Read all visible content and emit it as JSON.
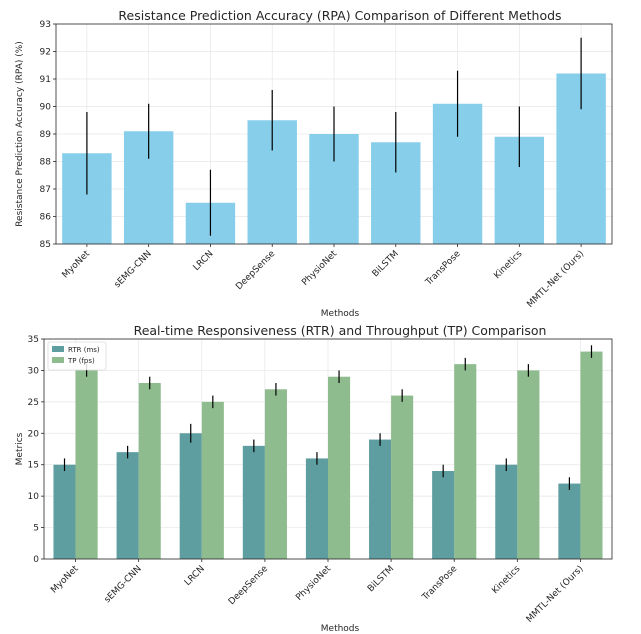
{
  "chart_data": [
    {
      "type": "bar",
      "title": "Resistance Prediction Accuracy (RPA) Comparison of Different Methods",
      "xlabel": "Methods",
      "ylabel": "Resistance Prediction Accuracy (RPA) (%)",
      "ylim": [
        85,
        93
      ],
      "yticks": [
        85,
        86,
        87,
        88,
        89,
        90,
        91,
        92,
        93
      ],
      "grid": true,
      "categories": [
        "MyoNet",
        "sEMG-CNN",
        "LRCN",
        "DeepSense",
        "PhysioNet",
        "BiLSTM",
        "TransPose",
        "Kinetics",
        "MMTL-Net (Ours)"
      ],
      "series": [
        {
          "values": [
            88.3,
            89.1,
            86.5,
            89.5,
            89.0,
            88.7,
            90.1,
            88.9,
            91.2
          ],
          "errors": [
            1.5,
            1.0,
            1.2,
            1.1,
            1.0,
            1.1,
            1.2,
            1.1,
            1.3
          ],
          "color": "#87CEEB"
        }
      ]
    },
    {
      "type": "bar",
      "title": "Real-time Responsiveness (RTR) and Throughput (TP) Comparison",
      "xlabel": "Methods",
      "ylabel": "Metrics",
      "ylim": [
        0,
        35
      ],
      "yticks": [
        0,
        5,
        10,
        15,
        20,
        25,
        30,
        35
      ],
      "grid": true,
      "legend": "top-left",
      "categories": [
        "MyoNet",
        "sEMG-CNN",
        "LRCN",
        "DeepSense",
        "PhysioNet",
        "BiLSTM",
        "TransPose",
        "Kinetics",
        "MMTL-Net (Ours)"
      ],
      "series": [
        {
          "name": "RTR (ms)",
          "values": [
            15,
            17,
            20,
            18,
            16,
            19,
            14,
            15,
            12
          ],
          "errors": [
            1.0,
            1.0,
            1.5,
            1.0,
            1.0,
            1.0,
            1.0,
            1.0,
            1.0
          ],
          "color": "#5F9EA0"
        },
        {
          "name": "TP (fps)",
          "values": [
            30,
            28,
            25,
            27,
            29,
            26,
            31,
            30,
            33
          ],
          "errors": [
            1.0,
            1.0,
            1.0,
            1.0,
            1.0,
            1.0,
            1.0,
            1.0,
            1.0
          ],
          "color": "#8FBC8F"
        }
      ]
    }
  ]
}
